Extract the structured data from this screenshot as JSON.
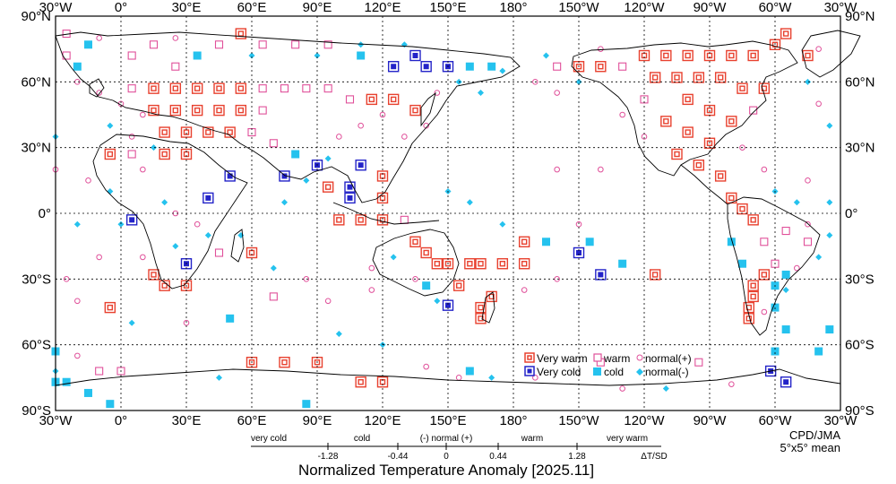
{
  "map": {
    "lon_labels_top": [
      "30°W",
      "0°",
      "30°E",
      "60°E",
      "90°E",
      "120°E",
      "150°E",
      "180°",
      "150°W",
      "120°W",
      "90°W",
      "60°W",
      "30°W"
    ],
    "lon_labels_bottom": [
      "30°W",
      "0°",
      "30°E",
      "60°E",
      "90°E",
      "120°E",
      "150°E",
      "180°",
      "150°W",
      "120°W",
      "90°W",
      "60°W",
      "30°W"
    ],
    "lat_labels_left": [
      "90°N",
      "60°N",
      "30°N",
      "0°",
      "30°S",
      "60°S",
      "90°S"
    ],
    "lat_labels_right": [
      "90°N",
      "60°N",
      "30°N",
      "0°",
      "30°S",
      "60°S",
      "90°S"
    ],
    "colors": {
      "very_warm": "#e8412f",
      "warm": "#e0509a",
      "very_cold": "#2323c8",
      "cold": "#25c2ee",
      "coast": "#000000",
      "grid": "#000000"
    }
  },
  "legend": {
    "very_warm": "Very warm",
    "very_cold": "Very cold",
    "warm": "warm",
    "cold": "cold",
    "normal_plus": "normal(+)",
    "normal_minus": "normal(-)"
  },
  "credit": {
    "line1": "CPD/JMA",
    "line2": "5°x5° mean"
  },
  "scale": {
    "categories": [
      "very cold",
      "cold",
      "(-) normal (+)",
      "warm",
      "very warm"
    ],
    "thresholds": [
      "-1.28",
      "-0.44",
      "0",
      "0.44",
      "1.28"
    ],
    "unit": "ΔT/SD"
  },
  "title": "Normalized Temperature Anomaly [2025.11]",
  "grid_cells": [
    {
      "lon": -25,
      "lat": 82,
      "cls": "warm"
    },
    {
      "lon": -15,
      "lat": 77,
      "cls": "cold"
    },
    {
      "lon": -25,
      "lat": 72,
      "cls": "warm"
    },
    {
      "lon": -20,
      "lat": 67,
      "cls": "cold"
    },
    {
      "lon": 5,
      "lat": 72,
      "cls": "warm"
    },
    {
      "lon": 15,
      "lat": 77,
      "cls": "warm"
    },
    {
      "lon": 25,
      "lat": 67,
      "cls": "warm"
    },
    {
      "lon": 35,
      "lat": 72,
      "cls": "cold"
    },
    {
      "lon": 45,
      "lat": 77,
      "cls": "warm"
    },
    {
      "lon": 55,
      "lat": 82,
      "cls": "very_warm"
    },
    {
      "lon": 65,
      "lat": 77,
      "cls": "warm"
    },
    {
      "lon": 80,
      "lat": 77,
      "cls": "warm"
    },
    {
      "lon": 95,
      "lat": 77,
      "cls": "warm"
    },
    {
      "lon": 110,
      "lat": 72,
      "cls": "cold"
    },
    {
      "lon": 125,
      "lat": 67,
      "cls": "very_cold"
    },
    {
      "lon": 135,
      "lat": 72,
      "cls": "very_cold"
    },
    {
      "lon": 140,
      "lat": 67,
      "cls": "very_cold"
    },
    {
      "lon": 150,
      "lat": 67,
      "cls": "very_cold"
    },
    {
      "lon": 160,
      "lat": 67,
      "cls": "cold"
    },
    {
      "lon": 170,
      "lat": 67,
      "cls": "cold"
    },
    {
      "lon": -160,
      "lat": 67,
      "cls": "warm"
    },
    {
      "lon": -150,
      "lat": 67,
      "cls": "very_warm"
    },
    {
      "lon": -140,
      "lat": 67,
      "cls": "very_warm"
    },
    {
      "lon": -130,
      "lat": 67,
      "cls": "warm"
    },
    {
      "lon": -120,
      "lat": 72,
      "cls": "very_warm"
    },
    {
      "lon": -110,
      "lat": 72,
      "cls": "very_warm"
    },
    {
      "lon": -100,
      "lat": 72,
      "cls": "very_warm"
    },
    {
      "lon": -90,
      "lat": 72,
      "cls": "very_warm"
    },
    {
      "lon": -80,
      "lat": 72,
      "cls": "very_warm"
    },
    {
      "lon": -70,
      "lat": 72,
      "cls": "very_warm"
    },
    {
      "lon": -60,
      "lat": 77,
      "cls": "very_warm"
    },
    {
      "lon": -55,
      "lat": 82,
      "cls": "very_warm"
    },
    {
      "lon": -45,
      "lat": 72,
      "cls": "very_warm"
    },
    {
      "lon": -115,
      "lat": 62,
      "cls": "very_warm"
    },
    {
      "lon": -105,
      "lat": 62,
      "cls": "very_warm"
    },
    {
      "lon": -95,
      "lat": 62,
      "cls": "very_warm"
    },
    {
      "lon": -85,
      "lat": 62,
      "cls": "very_warm"
    },
    {
      "lon": -75,
      "lat": 57,
      "cls": "very_warm"
    },
    {
      "lon": -65,
      "lat": 57,
      "cls": "very_warm"
    },
    {
      "lon": -100,
      "lat": 52,
      "cls": "very_warm"
    },
    {
      "lon": -90,
      "lat": 47,
      "cls": "very_warm"
    },
    {
      "lon": -80,
      "lat": 42,
      "cls": "very_warm"
    },
    {
      "lon": -70,
      "lat": 47,
      "cls": "warm"
    },
    {
      "lon": -120,
      "lat": 52,
      "cls": "warm"
    },
    {
      "lon": -110,
      "lat": 42,
      "cls": "very_warm"
    },
    {
      "lon": -100,
      "lat": 37,
      "cls": "very_warm"
    },
    {
      "lon": -90,
      "lat": 32,
      "cls": "very_warm"
    },
    {
      "lon": -105,
      "lat": 27,
      "cls": "very_warm"
    },
    {
      "lon": -95,
      "lat": 22,
      "cls": "very_warm"
    },
    {
      "lon": -85,
      "lat": 17,
      "cls": "very_warm"
    },
    {
      "lon": -80,
      "lat": 7,
      "cls": "very_warm"
    },
    {
      "lon": -75,
      "lat": 2,
      "cls": "very_warm"
    },
    {
      "lon": -70,
      "lat": -3,
      "cls": "very_warm"
    },
    {
      "lon": -65,
      "lat": -13,
      "cls": "warm"
    },
    {
      "lon": -55,
      "lat": -8,
      "cls": "warm"
    },
    {
      "lon": -45,
      "lat": -13,
      "cls": "warm"
    },
    {
      "lon": -60,
      "lat": -23,
      "cls": "warm"
    },
    {
      "lon": -65,
      "lat": -28,
      "cls": "very_warm"
    },
    {
      "lon": -70,
      "lat": -33,
      "cls": "very_warm"
    },
    {
      "lon": -70,
      "lat": -38,
      "cls": "very_warm"
    },
    {
      "lon": -72,
      "lat": -43,
      "cls": "very_warm"
    },
    {
      "lon": -72,
      "lat": -48,
      "cls": "very_warm"
    },
    {
      "lon": -60,
      "lat": -33,
      "cls": "cold"
    },
    {
      "lon": -55,
      "lat": -28,
      "cls": "cold"
    },
    {
      "lon": -55,
      "lat": -53,
      "cls": "cold"
    },
    {
      "lon": -60,
      "lat": -63,
      "cls": "cold"
    },
    {
      "lon": -35,
      "lat": -53,
      "cls": "cold"
    },
    {
      "lon": -40,
      "lat": -63,
      "cls": "cold"
    },
    {
      "lon": -62,
      "lat": -72,
      "cls": "very_cold"
    },
    {
      "lon": -55,
      "lat": -77,
      "cls": "very_cold"
    },
    {
      "lon": 5,
      "lat": 57,
      "cls": "warm"
    },
    {
      "lon": 15,
      "lat": 57,
      "cls": "very_warm"
    },
    {
      "lon": 25,
      "lat": 57,
      "cls": "very_warm"
    },
    {
      "lon": 35,
      "lat": 57,
      "cls": "very_warm"
    },
    {
      "lon": 45,
      "lat": 57,
      "cls": "very_warm"
    },
    {
      "lon": 55,
      "lat": 57,
      "cls": "very_warm"
    },
    {
      "lon": 65,
      "lat": 57,
      "cls": "warm"
    },
    {
      "lon": 75,
      "lat": 57,
      "cls": "warm"
    },
    {
      "lon": 85,
      "lat": 57,
      "cls": "warm"
    },
    {
      "lon": 95,
      "lat": 57,
      "cls": "warm"
    },
    {
      "lon": 105,
      "lat": 52,
      "cls": "warm"
    },
    {
      "lon": 115,
      "lat": 52,
      "cls": "very_warm"
    },
    {
      "lon": 125,
      "lat": 52,
      "cls": "very_warm"
    },
    {
      "lon": 135,
      "lat": 47,
      "cls": "very_warm"
    },
    {
      "lon": 15,
      "lat": 47,
      "cls": "very_warm"
    },
    {
      "lon": 25,
      "lat": 47,
      "cls": "very_warm"
    },
    {
      "lon": 35,
      "lat": 47,
      "cls": "very_warm"
    },
    {
      "lon": 45,
      "lat": 47,
      "cls": "very_warm"
    },
    {
      "lon": 55,
      "lat": 47,
      "cls": "very_warm"
    },
    {
      "lon": 65,
      "lat": 47,
      "cls": "warm"
    },
    {
      "lon": 20,
      "lat": 37,
      "cls": "very_warm"
    },
    {
      "lon": 30,
      "lat": 37,
      "cls": "very_warm"
    },
    {
      "lon": 40,
      "lat": 37,
      "cls": "very_warm"
    },
    {
      "lon": 50,
      "lat": 37,
      "cls": "very_warm"
    },
    {
      "lon": 60,
      "lat": 37,
      "cls": "warm"
    },
    {
      "lon": -5,
      "lat": 27,
      "cls": "very_warm"
    },
    {
      "lon": 5,
      "lat": 27,
      "cls": "warm"
    },
    {
      "lon": 20,
      "lat": 27,
      "cls": "very_warm"
    },
    {
      "lon": 30,
      "lat": 27,
      "cls": "very_warm"
    },
    {
      "lon": 70,
      "lat": 32,
      "cls": "warm"
    },
    {
      "lon": 80,
      "lat": 27,
      "cls": "cold"
    },
    {
      "lon": 90,
      "lat": 22,
      "cls": "very_cold"
    },
    {
      "lon": 75,
      "lat": 17,
      "cls": "very_cold"
    },
    {
      "lon": 95,
      "lat": 12,
      "cls": "very_warm"
    },
    {
      "lon": 105,
      "lat": 12,
      "cls": "very_cold"
    },
    {
      "lon": 110,
      "lat": 22,
      "cls": "very_cold"
    },
    {
      "lon": 105,
      "lat": 7,
      "cls": "very_cold"
    },
    {
      "lon": 120,
      "lat": 17,
      "cls": "very_warm"
    },
    {
      "lon": 120,
      "lat": 7,
      "cls": "very_warm"
    },
    {
      "lon": 120,
      "lat": -3,
      "cls": "very_warm"
    },
    {
      "lon": 110,
      "lat": -3,
      "cls": "very_warm"
    },
    {
      "lon": 100,
      "lat": -3,
      "cls": "very_warm"
    },
    {
      "lon": 130,
      "lat": -3,
      "cls": "warm"
    },
    {
      "lon": 135,
      "lat": -13,
      "cls": "very_warm"
    },
    {
      "lon": 140,
      "lat": -18,
      "cls": "very_warm"
    },
    {
      "lon": 145,
      "lat": -23,
      "cls": "very_warm"
    },
    {
      "lon": 150,
      "lat": -23,
      "cls": "very_warm"
    },
    {
      "lon": 160,
      "lat": -23,
      "cls": "very_warm"
    },
    {
      "lon": 165,
      "lat": -23,
      "cls": "very_warm"
    },
    {
      "lon": 175,
      "lat": -23,
      "cls": "very_warm"
    },
    {
      "lon": 155,
      "lat": -33,
      "cls": "very_warm"
    },
    {
      "lon": 170,
      "lat": -38,
      "cls": "very_warm"
    },
    {
      "lon": 165,
      "lat": -43,
      "cls": "very_warm"
    },
    {
      "lon": 165,
      "lat": -48,
      "cls": "very_warm"
    },
    {
      "lon": -175,
      "lat": -13,
      "cls": "very_warm"
    },
    {
      "lon": -175,
      "lat": -23,
      "cls": "very_warm"
    },
    {
      "lon": -115,
      "lat": -28,
      "cls": "very_warm"
    },
    {
      "lon": -150,
      "lat": -18,
      "cls": "very_cold"
    },
    {
      "lon": -140,
      "lat": -28,
      "cls": "very_cold"
    },
    {
      "lon": 150,
      "lat": -42,
      "cls": "very_cold"
    },
    {
      "lon": -145,
      "lat": -13,
      "cls": "cold"
    },
    {
      "lon": -130,
      "lat": -23,
      "cls": "cold"
    },
    {
      "lon": -165,
      "lat": -13,
      "cls": "cold"
    },
    {
      "lon": 140,
      "lat": -33,
      "cls": "cold"
    },
    {
      "lon": 15,
      "lat": -28,
      "cls": "very_warm"
    },
    {
      "lon": 20,
      "lat": -33,
      "cls": "very_warm"
    },
    {
      "lon": 30,
      "lat": -33,
      "cls": "very_warm"
    },
    {
      "lon": 30,
      "lat": -23,
      "cls": "very_cold"
    },
    {
      "lon": 5,
      "lat": -3,
      "cls": "very_cold"
    },
    {
      "lon": 40,
      "lat": 7,
      "cls": "very_cold"
    },
    {
      "lon": 50,
      "lat": 17,
      "cls": "very_cold"
    },
    {
      "lon": 45,
      "lat": -18,
      "cls": "warm"
    },
    {
      "lon": 60,
      "lat": -18,
      "cls": "very_warm"
    },
    {
      "lon": -5,
      "lat": -43,
      "cls": "very_warm"
    },
    {
      "lon": 50,
      "lat": -48,
      "cls": "cold"
    },
    {
      "lon": 70,
      "lat": -38,
      "cls": "warm"
    },
    {
      "lon": 60,
      "lat": -68,
      "cls": "very_warm"
    },
    {
      "lon": 75,
      "lat": -68,
      "cls": "very_warm"
    },
    {
      "lon": 90,
      "lat": -68,
      "cls": "very_warm"
    },
    {
      "lon": 110,
      "lat": -77,
      "cls": "very_warm"
    },
    {
      "lon": 120,
      "lat": -77,
      "cls": "very_warm"
    },
    {
      "lon": -95,
      "lat": -68,
      "cls": "warm"
    },
    {
      "lon": -140,
      "lat": -68,
      "cls": "warm"
    },
    {
      "lon": -10,
      "lat": -72,
      "cls": "warm"
    },
    {
      "lon": 0,
      "lat": -72,
      "cls": "warm"
    },
    {
      "lon": -15,
      "lat": -82,
      "cls": "cold"
    },
    {
      "lon": -30,
      "lat": -77,
      "cls": "cold"
    },
    {
      "lon": -5,
      "lat": -87,
      "cls": "cold"
    },
    {
      "lon": 85,
      "lat": -87,
      "cls": "cold"
    },
    {
      "lon": -30,
      "lat": -77,
      "cls": "cold"
    },
    {
      "lon": -25,
      "lat": -77,
      "cls": "cold"
    },
    {
      "lon": 160,
      "lat": -72,
      "cls": "cold"
    },
    {
      "lon": -30,
      "lat": -63,
      "cls": "cold"
    },
    {
      "lon": -60,
      "lat": -43,
      "cls": "cold"
    },
    {
      "lon": -75,
      "lat": -23,
      "cls": "cold"
    },
    {
      "lon": -80,
      "lat": -13,
      "cls": "cold"
    }
  ],
  "normal_points": [
    {
      "lon": -20,
      "lat": 60,
      "cls": "plus"
    },
    {
      "lon": -10,
      "lat": 55,
      "cls": "plus"
    },
    {
      "lon": 0,
      "lat": 50,
      "cls": "plus"
    },
    {
      "lon": 10,
      "lat": 45,
      "cls": "plus"
    },
    {
      "lon": -5,
      "lat": 40,
      "cls": "minus"
    },
    {
      "lon": 5,
      "lat": 35,
      "cls": "plus"
    },
    {
      "lon": 15,
      "lat": 30,
      "cls": "minus"
    },
    {
      "lon": 10,
      "lat": 20,
      "cls": "plus"
    },
    {
      "lon": -15,
      "lat": 15,
      "cls": "plus"
    },
    {
      "lon": -5,
      "lat": 10,
      "cls": "minus"
    },
    {
      "lon": 20,
      "lat": 5,
      "cls": "minus"
    },
    {
      "lon": 25,
      "lat": 0,
      "cls": "plus"
    },
    {
      "lon": 35,
      "lat": -5,
      "cls": "plus"
    },
    {
      "lon": 40,
      "lat": -10,
      "cls": "minus"
    },
    {
      "lon": 25,
      "lat": -15,
      "cls": "minus"
    },
    {
      "lon": 10,
      "lat": -20,
      "cls": "plus"
    },
    {
      "lon": 55,
      "lat": -10,
      "cls": "minus"
    },
    {
      "lon": 75,
      "lat": 5,
      "cls": "minus"
    },
    {
      "lon": 85,
      "lat": 15,
      "cls": "minus"
    },
    {
      "lon": 95,
      "lat": 25,
      "cls": "minus"
    },
    {
      "lon": 100,
      "lat": 35,
      "cls": "plus"
    },
    {
      "lon": 110,
      "lat": 40,
      "cls": "plus"
    },
    {
      "lon": 120,
      "lat": 45,
      "cls": "plus"
    },
    {
      "lon": 130,
      "lat": 35,
      "cls": "plus"
    },
    {
      "lon": 140,
      "lat": 40,
      "cls": "plus"
    },
    {
      "lon": 145,
      "lat": 55,
      "cls": "plus"
    },
    {
      "lon": 155,
      "lat": 60,
      "cls": "minus"
    },
    {
      "lon": 165,
      "lat": 55,
      "cls": "minus"
    },
    {
      "lon": 175,
      "lat": 65,
      "cls": "minus"
    },
    {
      "lon": -170,
      "lat": 60,
      "cls": "plus"
    },
    {
      "lon": -160,
      "lat": 55,
      "cls": "plus"
    },
    {
      "lon": -150,
      "lat": 60,
      "cls": "minus"
    },
    {
      "lon": -130,
      "lat": 45,
      "cls": "plus"
    },
    {
      "lon": -120,
      "lat": 35,
      "cls": "plus"
    },
    {
      "lon": -75,
      "lat": 30,
      "cls": "plus"
    },
    {
      "lon": -65,
      "lat": 20,
      "cls": "plus"
    },
    {
      "lon": -60,
      "lat": 10,
      "cls": "minus"
    },
    {
      "lon": -50,
      "lat": 5,
      "cls": "minus"
    },
    {
      "lon": -45,
      "lat": -5,
      "cls": "plus"
    },
    {
      "lon": -40,
      "lat": -20,
      "cls": "minus"
    },
    {
      "lon": -50,
      "lat": -25,
      "cls": "plus"
    },
    {
      "lon": -55,
      "lat": -35,
      "cls": "minus"
    },
    {
      "lon": -65,
      "lat": -45,
      "cls": "plus"
    },
    {
      "lon": -175,
      "lat": -35,
      "cls": "plus"
    },
    {
      "lon": -160,
      "lat": -30,
      "cls": "plus"
    },
    {
      "lon": -150,
      "lat": -5,
      "cls": "plus"
    },
    {
      "lon": -140,
      "lat": 20,
      "cls": "plus"
    },
    {
      "lon": -160,
      "lat": 20,
      "cls": "plus"
    },
    {
      "lon": 175,
      "lat": -5,
      "cls": "minus"
    },
    {
      "lon": 160,
      "lat": 5,
      "cls": "minus"
    },
    {
      "lon": 150,
      "lat": 10,
      "cls": "minus"
    },
    {
      "lon": 135,
      "lat": -30,
      "cls": "plus"
    },
    {
      "lon": 125,
      "lat": -20,
      "cls": "minus"
    },
    {
      "lon": 115,
      "lat": -25,
      "cls": "plus"
    },
    {
      "lon": 115,
      "lat": -35,
      "cls": "plus"
    },
    {
      "lon": 145,
      "lat": -40,
      "cls": "minus"
    },
    {
      "lon": -35,
      "lat": 40,
      "cls": "minus"
    },
    {
      "lon": -30,
      "lat": 35,
      "cls": "minus"
    },
    {
      "lon": -40,
      "lat": 50,
      "cls": "plus"
    },
    {
      "lon": -45,
      "lat": 60,
      "cls": "minus"
    },
    {
      "lon": -35,
      "lat": -10,
      "cls": "minus"
    },
    {
      "lon": -25,
      "lat": -30,
      "cls": "plus"
    },
    {
      "lon": 0,
      "lat": -5,
      "cls": "minus"
    },
    {
      "lon": -10,
      "lat": -20,
      "cls": "plus"
    },
    {
      "lon": -20,
      "lat": -40,
      "cls": "plus"
    },
    {
      "lon": 5,
      "lat": -50,
      "cls": "minus"
    },
    {
      "lon": 30,
      "lat": -50,
      "cls": "plus"
    },
    {
      "lon": 70,
      "lat": -25,
      "cls": "minus"
    },
    {
      "lon": 85,
      "lat": -30,
      "cls": "plus"
    },
    {
      "lon": 95,
      "lat": -40,
      "cls": "plus"
    },
    {
      "lon": 100,
      "lat": -55,
      "cls": "minus"
    },
    {
      "lon": 120,
      "lat": -60,
      "cls": "minus"
    },
    {
      "lon": 140,
      "lat": -70,
      "cls": "plus"
    },
    {
      "lon": 155,
      "lat": -75,
      "cls": "plus"
    },
    {
      "lon": 170,
      "lat": -75,
      "cls": "minus"
    },
    {
      "lon": -170,
      "lat": -75,
      "cls": "plus"
    },
    {
      "lon": -130,
      "lat": -80,
      "cls": "plus"
    },
    {
      "lon": -110,
      "lat": -80,
      "cls": "minus"
    },
    {
      "lon": -80,
      "lat": -78,
      "cls": "plus"
    },
    {
      "lon": -40,
      "lat": 75,
      "cls": "plus"
    },
    {
      "lon": -10,
      "lat": 80,
      "cls": "plus"
    },
    {
      "lon": 25,
      "lat": 80,
      "cls": "plus"
    },
    {
      "lon": 60,
      "lat": 72,
      "cls": "minus"
    },
    {
      "lon": 90,
      "lat": 72,
      "cls": "minus"
    },
    {
      "lon": 110,
      "lat": 77,
      "cls": "minus"
    },
    {
      "lon": 130,
      "lat": 77,
      "cls": "minus"
    },
    {
      "lon": -165,
      "lat": 72,
      "cls": "minus"
    },
    {
      "lon": -140,
      "lat": 75,
      "cls": "plus"
    },
    {
      "lon": -30,
      "lat": -72,
      "cls": "minus"
    },
    {
      "lon": -20,
      "lat": -65,
      "cls": "plus"
    },
    {
      "lon": 45,
      "lat": -75,
      "cls": "minus"
    },
    {
      "lon": -45,
      "lat": 15,
      "cls": "plus"
    },
    {
      "lon": -30,
      "lat": 20,
      "cls": "plus"
    },
    {
      "lon": -35,
      "lat": 5,
      "cls": "minus"
    },
    {
      "lon": -20,
      "lat": -5,
      "cls": "minus"
    }
  ]
}
